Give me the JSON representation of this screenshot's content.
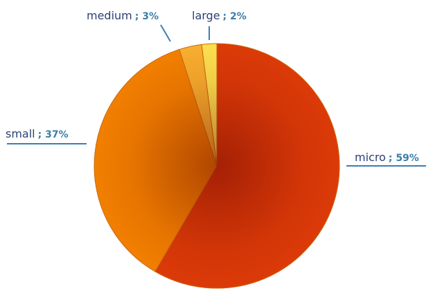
{
  "chart_data": {
    "type": "pie",
    "categories": [
      "micro",
      "small",
      "medium",
      "large"
    ],
    "values": [
      59,
      37,
      3,
      2
    ],
    "value_labels": [
      "; 59%",
      "; 37%",
      "; 3%",
      "; 2%"
    ],
    "colors": [
      "#dc3a08",
      "#f27f00",
      "#f8ae2e",
      "#fde04e"
    ]
  }
}
